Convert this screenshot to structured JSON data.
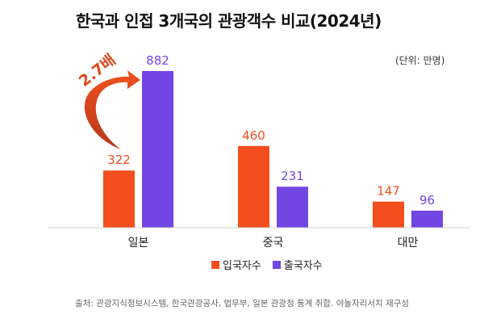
{
  "title": "한국과 인접 3개국의 관광객수 비교(2024년)",
  "unit_label": "(단위: 만명)",
  "annotation": "2.7배",
  "source": "출처: 관광지식정보시스템, 한국관광공사, 법무부, 일본 관광청 통계 취합. 야놀자리서치 재구성",
  "colors": {
    "inbound": "#f44e1f",
    "outbound": "#7246e3",
    "arrow": "#e04a1c",
    "axis": "#d0d0d0"
  },
  "chart_data": {
    "type": "bar",
    "title": "한국과 인접 3개국의 관광객수 비교(2024년)",
    "xlabel": "",
    "ylabel": "(단위: 만명)",
    "categories": [
      "일본",
      "중국",
      "대만"
    ],
    "series": [
      {
        "name": "입국자수",
        "values": [
          322,
          460,
          147
        ]
      },
      {
        "name": "출국자수",
        "values": [
          882,
          231,
          96
        ]
      }
    ],
    "ylim": [
      0,
      882
    ],
    "grid": false,
    "legend": "bottom-center",
    "annotations": [
      "2.7배"
    ]
  }
}
